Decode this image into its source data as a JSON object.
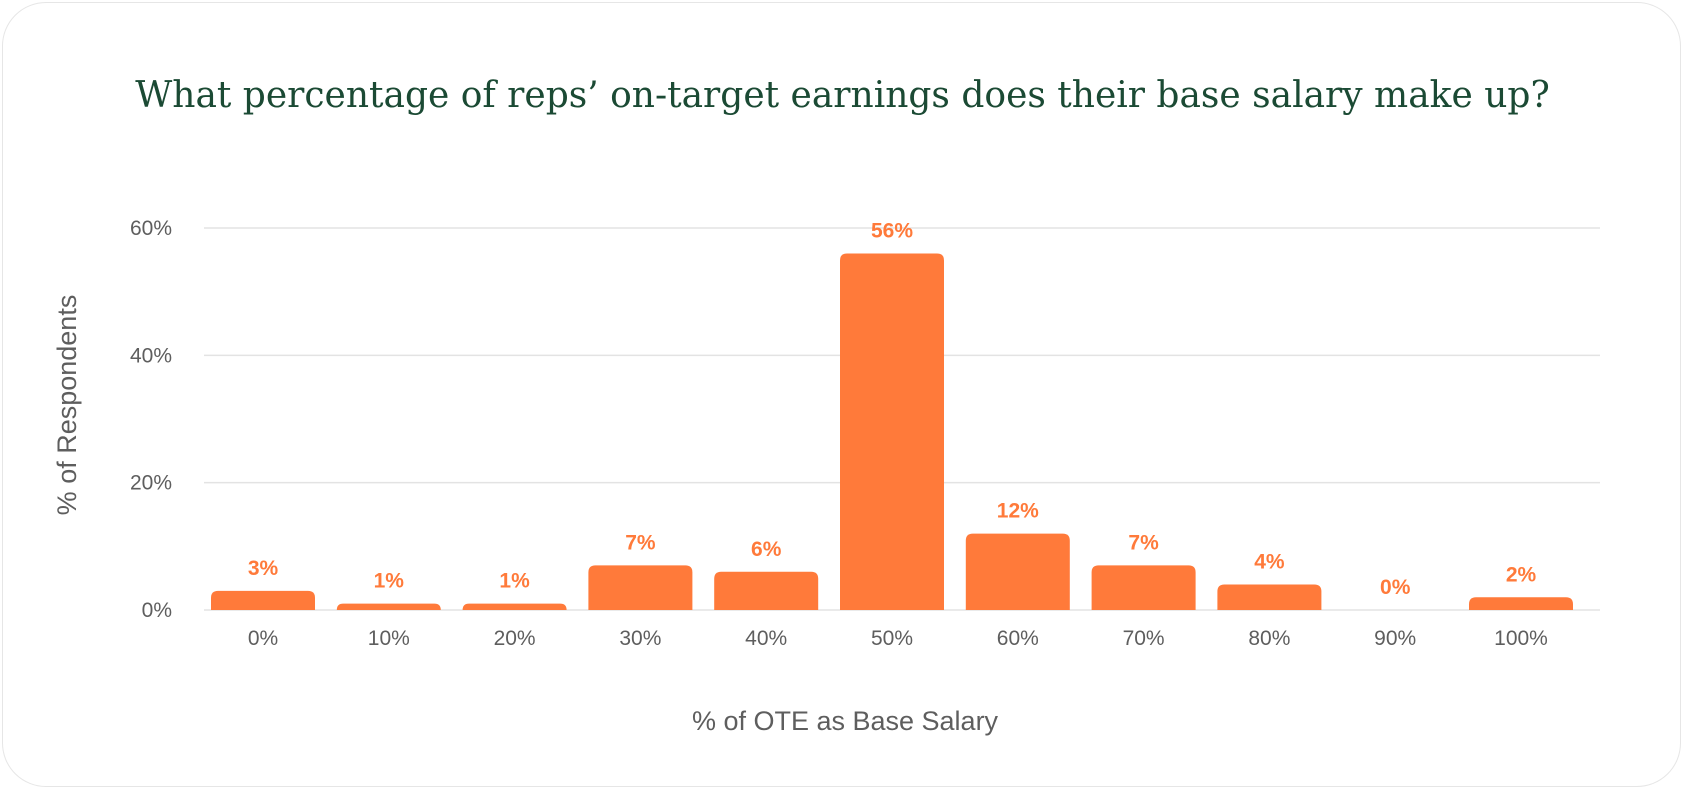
{
  "chart_data": {
    "type": "bar",
    "title": "What percentage of reps’ on-target earnings does their base salary make up?",
    "xlabel": "% of OTE as Base Salary",
    "ylabel": "% of Respondents",
    "categories": [
      "0%",
      "10%",
      "20%",
      "30%",
      "40%",
      "50%",
      "60%",
      "70%",
      "80%",
      "90%",
      "100%"
    ],
    "values": [
      3,
      1,
      1,
      7,
      6,
      56,
      12,
      7,
      4,
      0,
      2
    ],
    "data_labels": [
      "3%",
      "1%",
      "1%",
      "7%",
      "6%",
      "56%",
      "12%",
      "7%",
      "4%",
      "0%",
      "2%"
    ],
    "ylim": [
      0,
      60
    ],
    "yticks": [
      0,
      20,
      40,
      60
    ],
    "ytick_labels": [
      "0%",
      "20%",
      "40%",
      "60%"
    ],
    "grid": true,
    "legend": "none",
    "colors": {
      "bar": "#ff7a3a",
      "title": "#1b4a34",
      "grid": "#e3e3e3",
      "text": "#5e5e5e"
    }
  }
}
